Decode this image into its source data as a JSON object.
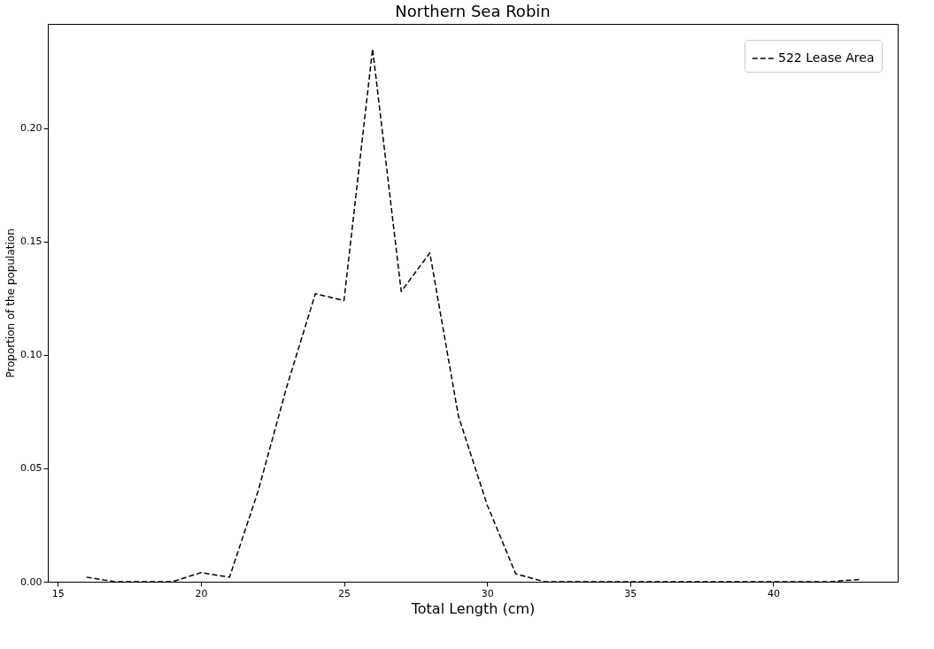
{
  "chart_data": {
    "type": "line",
    "title": "Northern Sea Robin",
    "xlabel": "Total Length (cm)",
    "ylabel": "Proportion of the population",
    "x": [
      16,
      17,
      18,
      19,
      20,
      21,
      22,
      23,
      24,
      25,
      26,
      27,
      28,
      29,
      30,
      31,
      32,
      33,
      34,
      35,
      36,
      37,
      38,
      39,
      40,
      41,
      42,
      43
    ],
    "series": [
      {
        "name": "522 Lease Area",
        "color": "#000000",
        "line_style": "dashed",
        "values": [
          0.002,
          0,
          0,
          0,
          0.004,
          0.002,
          0.04,
          0.086,
          0.127,
          0.124,
          0.235,
          0.128,
          0.145,
          0.073,
          0.034,
          0.0035,
          0,
          0,
          0,
          0,
          0,
          0,
          0,
          0,
          0,
          0,
          0,
          0.001
        ]
      }
    ],
    "xlim": [
      14.65,
      44.35
    ],
    "ylim": [
      0,
      0.246
    ],
    "xticks": [
      15,
      20,
      25,
      30,
      35,
      40
    ],
    "yticks": [
      {
        "value": 0,
        "label": "0.00"
      },
      {
        "value": 0.05,
        "label": "0.05"
      },
      {
        "value": 0.1,
        "label": "0.10"
      },
      {
        "value": 0.15,
        "label": "0.15"
      },
      {
        "value": 0.2,
        "label": "0.20"
      }
    ],
    "legend": "top right",
    "grid": false,
    "marker": "none"
  }
}
